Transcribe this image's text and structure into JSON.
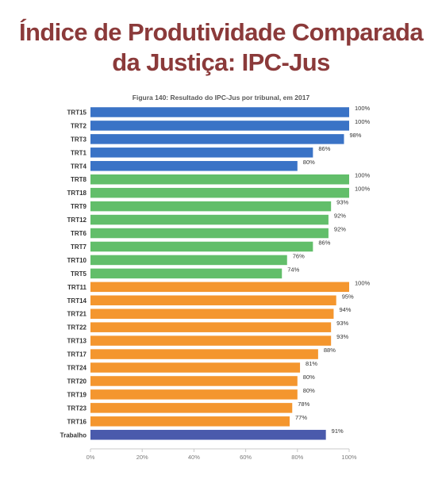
{
  "header": {
    "title_line1": "Índice de Produtividade Comparada",
    "title_line2": "da Justiça: IPC-Jus"
  },
  "colors": {
    "title": "#8b3a3a",
    "group1": "#3a73c6",
    "group2": "#62be6a",
    "group3": "#f4962e",
    "total": "#4a5aac"
  },
  "chart_data": {
    "type": "bar",
    "orientation": "horizontal",
    "title": "Figura 140: Resultado do IPC-Jus por tribunal, em 2017",
    "xlabel": "",
    "ylabel": "",
    "xlim": [
      0,
      100
    ],
    "grid": false,
    "categories": [
      "TRT15",
      "TRT2",
      "TRT3",
      "TRT1",
      "TRT4",
      "TRT8",
      "TRT18",
      "TRT9",
      "TRT12",
      "TRT6",
      "TRT7",
      "TRT10",
      "TRT5",
      "TRT11",
      "TRT14",
      "TRT21",
      "TRT22",
      "TRT13",
      "TRT17",
      "TRT24",
      "TRT20",
      "TRT19",
      "TRT23",
      "TRT16",
      "Trabalho"
    ],
    "values": [
      100,
      100,
      98,
      86,
      80,
      100,
      100,
      93,
      92,
      92,
      86,
      76,
      74,
      100,
      95,
      94,
      93,
      93,
      88,
      81,
      80,
      80,
      78,
      77,
      91
    ],
    "value_labels": [
      "100%",
      "100%",
      "98%",
      "86%",
      "80%",
      "100%",
      "100%",
      "93%",
      "92%",
      "92%",
      "86%",
      "76%",
      "74%",
      "100%",
      "95%",
      "94%",
      "93%",
      "93%",
      "88%",
      "81%",
      "80%",
      "80%",
      "78%",
      "77%",
      "91%"
    ],
    "bar_groups": [
      1,
      1,
      1,
      1,
      1,
      2,
      2,
      2,
      2,
      2,
      2,
      2,
      2,
      3,
      3,
      3,
      3,
      3,
      3,
      3,
      3,
      3,
      3,
      3,
      4
    ],
    "x_ticks": [
      "0%",
      "20%",
      "40%",
      "60%",
      "80%",
      "100%"
    ]
  }
}
